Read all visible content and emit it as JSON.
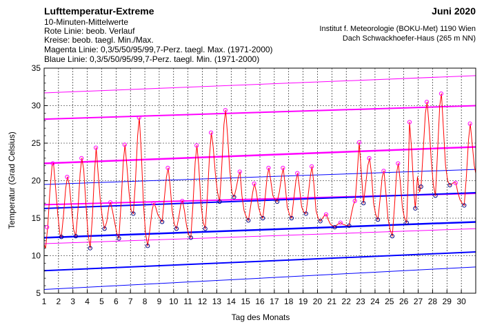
{
  "header": {
    "title": "Lufttemperatur-Extreme",
    "line1": "10-Minuten-Mittelwerte",
    "line2": "Rote Linie: beob. Verlauf",
    "line3": "Kreise: beob. taegl. Min./Max.",
    "line4": "Magenta Linie: 0,3/5/50/95/99,7-Perz. taegl. Max. (1971-2000)",
    "line5": "Blaue Linie: 0,3/5/50/95/99,7-Perz. taegl. Min. (1971-2000)",
    "month": "Juni 2020",
    "institute": "Institut f. Meteorologie (BOKU-Met) 1190 Wien",
    "station": "Dach Schwackhoefer-Haus (265 m NN)"
  },
  "colors": {
    "observed": "#ff0000",
    "max_percentiles": "#ff00ff",
    "min_percentiles": "#0000ff",
    "max_circles": "#ff00ff",
    "min_circles": "#000080",
    "grid": "#000000"
  },
  "chart_data": {
    "type": "line",
    "xlabel": "Tag des Monats",
    "ylabel": "Temperatur (Grad Celsius)",
    "xlim": [
      1,
      31
    ],
    "ylim": [
      5,
      35
    ],
    "xticks": [
      "1",
      "2",
      "3",
      "4",
      "5",
      "6",
      "7",
      "8",
      "9",
      "10",
      "11",
      "12",
      "13",
      "14",
      "15",
      "16",
      "17",
      "18",
      "19",
      "20",
      "21",
      "22",
      "23",
      "24",
      "25",
      "26",
      "27",
      "28",
      "29",
      "30"
    ],
    "yticks": [
      "5",
      "10",
      "15",
      "20",
      "25",
      "30",
      "35"
    ],
    "grid": true,
    "max_percentile_lines": [
      {
        "name": "0,3",
        "start": 11.6,
        "end": 13.6
      },
      {
        "name": "5",
        "start": 16.8,
        "end": 18.3
      },
      {
        "name": "50",
        "start": 22.3,
        "end": 24.5
      },
      {
        "name": "95",
        "start": 28.2,
        "end": 30.0
      },
      {
        "name": "99,7",
        "start": 31.7,
        "end": 34.0
      }
    ],
    "min_percentile_lines": [
      {
        "name": "0,3",
        "start": 5.5,
        "end": 8.5
      },
      {
        "name": "5",
        "start": 8.0,
        "end": 10.5
      },
      {
        "name": "50",
        "start": 12.4,
        "end": 14.5
      },
      {
        "name": "95",
        "start": 16.3,
        "end": 18.4
      },
      {
        "name": "99,7",
        "start": 19.5,
        "end": 21.5
      }
    ],
    "daily_max": [
      {
        "day": 1.2,
        "value": 13.8
      },
      {
        "day": 1.6,
        "value": 22.3
      },
      {
        "day": 2.6,
        "value": 20.5
      },
      {
        "day": 3.6,
        "value": 23.0
      },
      {
        "day": 4.6,
        "value": 24.4
      },
      {
        "day": 5.6,
        "value": 17.1
      },
      {
        "day": 6.6,
        "value": 24.8
      },
      {
        "day": 7.6,
        "value": 28.4
      },
      {
        "day": 8.6,
        "value": 17.0
      },
      {
        "day": 9.6,
        "value": 21.7
      },
      {
        "day": 10.6,
        "value": 17.3
      },
      {
        "day": 11.6,
        "value": 24.7
      },
      {
        "day": 12.6,
        "value": 26.4
      },
      {
        "day": 13.6,
        "value": 29.4
      },
      {
        "day": 14.6,
        "value": 21.2
      },
      {
        "day": 15.6,
        "value": 19.6
      },
      {
        "day": 16.6,
        "value": 21.7
      },
      {
        "day": 17.6,
        "value": 21.7
      },
      {
        "day": 18.6,
        "value": 21.0
      },
      {
        "day": 19.6,
        "value": 21.9
      },
      {
        "day": 20.6,
        "value": 15.5
      },
      {
        "day": 21.6,
        "value": 14.4
      },
      {
        "day": 22.6,
        "value": 17.3
      },
      {
        "day": 22.9,
        "value": 25.1
      },
      {
        "day": 23.6,
        "value": 23.0
      },
      {
        "day": 24.6,
        "value": 21.3
      },
      {
        "day": 25.6,
        "value": 22.3
      },
      {
        "day": 26.4,
        "value": 27.8
      },
      {
        "day": 27.6,
        "value": 30.5
      },
      {
        "day": 28.6,
        "value": 31.6
      },
      {
        "day": 29.6,
        "value": 19.7
      },
      {
        "day": 30.6,
        "value": 27.6
      }
    ],
    "daily_min": [
      {
        "day": 2.2,
        "value": 12.5
      },
      {
        "day": 3.2,
        "value": 12.6
      },
      {
        "day": 4.2,
        "value": 11.0
      },
      {
        "day": 5.2,
        "value": 13.6
      },
      {
        "day": 6.2,
        "value": 12.3
      },
      {
        "day": 7.2,
        "value": 15.6
      },
      {
        "day": 8.2,
        "value": 11.3
      },
      {
        "day": 9.2,
        "value": 14.5
      },
      {
        "day": 10.2,
        "value": 13.6
      },
      {
        "day": 11.2,
        "value": 12.4
      },
      {
        "day": 12.2,
        "value": 13.6
      },
      {
        "day": 13.2,
        "value": 17.2
      },
      {
        "day": 14.2,
        "value": 17.8
      },
      {
        "day": 15.2,
        "value": 14.7
      },
      {
        "day": 16.2,
        "value": 15.0
      },
      {
        "day": 17.2,
        "value": 17.2
      },
      {
        "day": 18.2,
        "value": 15.0
      },
      {
        "day": 19.2,
        "value": 15.6
      },
      {
        "day": 20.2,
        "value": 14.6
      },
      {
        "day": 21.2,
        "value": 13.8
      },
      {
        "day": 22.2,
        "value": 14.0
      },
      {
        "day": 23.2,
        "value": 17.0
      },
      {
        "day": 24.2,
        "value": 14.8
      },
      {
        "day": 25.2,
        "value": 12.6
      },
      {
        "day": 26.2,
        "value": 14.4
      },
      {
        "day": 26.8,
        "value": 16.3
      },
      {
        "day": 27.2,
        "value": 19.2
      },
      {
        "day": 28.2,
        "value": 18.0
      },
      {
        "day": 29.2,
        "value": 19.4
      },
      {
        "day": 30.2,
        "value": 16.7
      }
    ],
    "observed_series": {
      "name": "beob. Verlauf",
      "points": [
        [
          1.0,
          11.5
        ],
        [
          1.1,
          11.0
        ],
        [
          1.25,
          13.8
        ],
        [
          1.4,
          18.5
        ],
        [
          1.55,
          22.0
        ],
        [
          1.65,
          22.3
        ],
        [
          1.8,
          19.0
        ],
        [
          1.95,
          15.5
        ],
        [
          2.1,
          12.8
        ],
        [
          2.2,
          12.5
        ],
        [
          2.35,
          15.5
        ],
        [
          2.5,
          19.0
        ],
        [
          2.62,
          20.5
        ],
        [
          2.75,
          19.5
        ],
        [
          2.9,
          16.5
        ],
        [
          3.05,
          13.5
        ],
        [
          3.2,
          12.6
        ],
        [
          3.35,
          16.0
        ],
        [
          3.5,
          21.0
        ],
        [
          3.62,
          23.0
        ],
        [
          3.75,
          21.5
        ],
        [
          3.9,
          17.0
        ],
        [
          4.05,
          13.0
        ],
        [
          4.2,
          11.0
        ],
        [
          4.35,
          15.0
        ],
        [
          4.5,
          21.0
        ],
        [
          4.62,
          24.4
        ],
        [
          4.75,
          21.0
        ],
        [
          4.9,
          17.5
        ],
        [
          5.05,
          15.0
        ],
        [
          5.2,
          13.6
        ],
        [
          5.35,
          14.5
        ],
        [
          5.5,
          16.5
        ],
        [
          5.62,
          17.1
        ],
        [
          5.75,
          16.0
        ],
        [
          5.9,
          14.5
        ],
        [
          6.05,
          13.0
        ],
        [
          6.2,
          12.3
        ],
        [
          6.35,
          17.0
        ],
        [
          6.5,
          22.5
        ],
        [
          6.62,
          24.8
        ],
        [
          6.75,
          22.0
        ],
        [
          6.9,
          18.5
        ],
        [
          7.05,
          16.0
        ],
        [
          7.2,
          15.6
        ],
        [
          7.35,
          20.0
        ],
        [
          7.5,
          26.0
        ],
        [
          7.62,
          28.4
        ],
        [
          7.75,
          24.0
        ],
        [
          7.9,
          17.0
        ],
        [
          8.05,
          13.0
        ],
        [
          8.2,
          11.3
        ],
        [
          8.35,
          13.5
        ],
        [
          8.5,
          16.0
        ],
        [
          8.62,
          17.0
        ],
        [
          8.75,
          16.5
        ],
        [
          8.9,
          15.5
        ],
        [
          9.05,
          15.0
        ],
        [
          9.2,
          14.5
        ],
        [
          9.35,
          17.5
        ],
        [
          9.5,
          20.5
        ],
        [
          9.62,
          21.7
        ],
        [
          9.75,
          19.5
        ],
        [
          9.9,
          16.0
        ],
        [
          10.05,
          14.2
        ],
        [
          10.2,
          13.6
        ],
        [
          10.35,
          15.0
        ],
        [
          10.5,
          16.8
        ],
        [
          10.62,
          17.3
        ],
        [
          10.75,
          16.0
        ],
        [
          10.9,
          14.0
        ],
        [
          11.05,
          12.8
        ],
        [
          11.2,
          12.4
        ],
        [
          11.35,
          17.0
        ],
        [
          11.5,
          22.5
        ],
        [
          11.62,
          24.7
        ],
        [
          11.75,
          22.0
        ],
        [
          11.9,
          17.0
        ],
        [
          12.05,
          14.5
        ],
        [
          12.2,
          13.6
        ],
        [
          12.35,
          18.0
        ],
        [
          12.5,
          23.5
        ],
        [
          12.62,
          26.4
        ],
        [
          12.75,
          24.5
        ],
        [
          12.9,
          21.0
        ],
        [
          13.05,
          18.5
        ],
        [
          13.2,
          17.2
        ],
        [
          13.35,
          22.0
        ],
        [
          13.5,
          27.5
        ],
        [
          13.62,
          29.4
        ],
        [
          13.75,
          26.0
        ],
        [
          13.9,
          21.5
        ],
        [
          14.05,
          18.5
        ],
        [
          14.2,
          17.8
        ],
        [
          14.35,
          19.0
        ],
        [
          14.5,
          20.5
        ],
        [
          14.62,
          21.2
        ],
        [
          14.75,
          18.0
        ],
        [
          14.9,
          16.0
        ],
        [
          15.05,
          15.2
        ],
        [
          15.2,
          14.7
        ],
        [
          15.35,
          16.5
        ],
        [
          15.5,
          18.5
        ],
        [
          15.62,
          19.6
        ],
        [
          15.75,
          18.5
        ],
        [
          15.9,
          16.5
        ],
        [
          16.05,
          15.5
        ],
        [
          16.2,
          15.0
        ],
        [
          16.35,
          17.5
        ],
        [
          16.5,
          20.5
        ],
        [
          16.62,
          21.7
        ],
        [
          16.75,
          20.0
        ],
        [
          16.9,
          18.0
        ],
        [
          17.05,
          17.5
        ],
        [
          17.2,
          17.2
        ],
        [
          17.35,
          18.5
        ],
        [
          17.5,
          20.5
        ],
        [
          17.62,
          21.7
        ],
        [
          17.75,
          19.5
        ],
        [
          17.9,
          16.5
        ],
        [
          18.05,
          15.5
        ],
        [
          18.2,
          15.0
        ],
        [
          18.35,
          17.5
        ],
        [
          18.5,
          20.0
        ],
        [
          18.62,
          21.0
        ],
        [
          18.75,
          19.0
        ],
        [
          18.9,
          16.5
        ],
        [
          19.05,
          15.8
        ],
        [
          19.2,
          15.6
        ],
        [
          19.35,
          18.0
        ],
        [
          19.5,
          20.5
        ],
        [
          19.62,
          21.9
        ],
        [
          19.75,
          19.5
        ],
        [
          19.9,
          16.0
        ],
        [
          20.05,
          15.0
        ],
        [
          20.2,
          14.6
        ],
        [
          20.35,
          15.0
        ],
        [
          20.5,
          15.4
        ],
        [
          20.62,
          15.5
        ],
        [
          20.75,
          14.8
        ],
        [
          20.9,
          14.2
        ],
        [
          21.05,
          14.0
        ],
        [
          21.2,
          13.8
        ],
        [
          21.35,
          14.1
        ],
        [
          21.5,
          14.3
        ],
        [
          21.62,
          14.4
        ],
        [
          21.75,
          14.2
        ],
        [
          21.9,
          14.1
        ],
        [
          22.05,
          14.0
        ],
        [
          22.2,
          14.0
        ],
        [
          22.35,
          15.5
        ],
        [
          22.5,
          16.8
        ],
        [
          22.62,
          17.3
        ],
        [
          22.75,
          20.5
        ],
        [
          22.9,
          25.1
        ],
        [
          23.05,
          21.0
        ],
        [
          23.2,
          17.0
        ],
        [
          23.35,
          19.5
        ],
        [
          23.5,
          22.0
        ],
        [
          23.62,
          23.0
        ],
        [
          23.75,
          21.0
        ],
        [
          23.9,
          17.0
        ],
        [
          24.05,
          15.5
        ],
        [
          24.2,
          14.8
        ],
        [
          24.35,
          17.5
        ],
        [
          24.5,
          20.5
        ],
        [
          24.62,
          21.3
        ],
        [
          24.75,
          18.5
        ],
        [
          24.9,
          15.0
        ],
        [
          25.05,
          13.5
        ],
        [
          25.2,
          12.6
        ],
        [
          25.35,
          16.5
        ],
        [
          25.5,
          21.0
        ],
        [
          25.62,
          22.3
        ],
        [
          25.75,
          20.0
        ],
        [
          25.9,
          16.5
        ],
        [
          26.05,
          15.0
        ],
        [
          26.2,
          14.4
        ],
        [
          26.3,
          20.0
        ],
        [
          26.4,
          27.8
        ],
        [
          26.55,
          24.0
        ],
        [
          26.7,
          18.5
        ],
        [
          26.8,
          16.3
        ],
        [
          26.95,
          20.5
        ],
        [
          27.1,
          18.5
        ],
        [
          27.2,
          19.2
        ],
        [
          27.35,
          24.0
        ],
        [
          27.5,
          29.0
        ],
        [
          27.62,
          30.5
        ],
        [
          27.75,
          27.5
        ],
        [
          27.9,
          23.0
        ],
        [
          28.05,
          19.5
        ],
        [
          28.2,
          18.0
        ],
        [
          28.35,
          24.0
        ],
        [
          28.5,
          30.0
        ],
        [
          28.62,
          31.6
        ],
        [
          28.75,
          27.0
        ],
        [
          28.9,
          22.0
        ],
        [
          29.05,
          20.0
        ],
        [
          29.2,
          19.4
        ],
        [
          29.35,
          19.6
        ],
        [
          29.5,
          19.8
        ],
        [
          29.62,
          19.7
        ],
        [
          29.75,
          18.5
        ],
        [
          29.9,
          17.5
        ],
        [
          30.05,
          17.0
        ],
        [
          30.2,
          16.7
        ],
        [
          30.35,
          20.5
        ],
        [
          30.5,
          25.5
        ],
        [
          30.62,
          27.6
        ],
        [
          30.75,
          25.0
        ],
        [
          30.9,
          22.0
        ],
        [
          31.0,
          21.0
        ]
      ]
    }
  }
}
